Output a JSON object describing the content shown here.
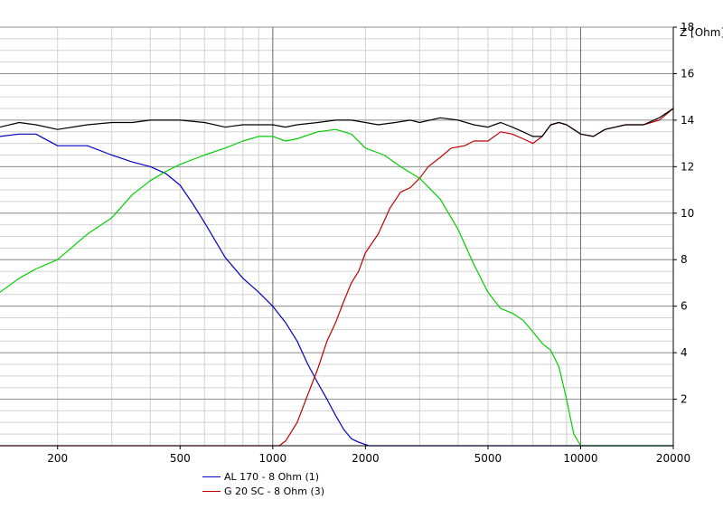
{
  "chart_data": {
    "type": "line",
    "title": "",
    "xlabel": "",
    "ylabel": "Z [Ohm]",
    "x_scale": "log",
    "xlim": [
      130,
      20000
    ],
    "ylim": [
      0,
      18
    ],
    "grid": true,
    "legend_position": "bottom-left",
    "x_ticks": [
      200,
      500,
      1000,
      2000,
      5000,
      10000,
      20000
    ],
    "x_tick_labels": [
      "200",
      "500",
      "1000",
      "2000",
      "5000",
      "10000",
      "20000"
    ],
    "y_ticks": [
      2,
      4,
      6,
      8,
      10,
      12,
      14,
      16,
      18
    ],
    "y_tick_labels": [
      "2",
      "4",
      "6",
      "8",
      "10",
      "12",
      "14",
      "16",
      "18"
    ],
    "series": [
      {
        "name": "AL 170 - 8 Ohm (1)",
        "color": "#0000c0",
        "x": [
          130,
          150,
          170,
          200,
          250,
          300,
          350,
          400,
          450,
          500,
          550,
          600,
          700,
          800,
          900,
          1000,
          1100,
          1200,
          1300,
          1400,
          1500,
          1600,
          1700,
          1800,
          1900,
          2000,
          2050,
          2100,
          20000
        ],
        "y": [
          13.3,
          13.4,
          13.4,
          12.9,
          12.9,
          12.5,
          12.2,
          12.0,
          11.7,
          11.2,
          10.4,
          9.6,
          8.1,
          7.2,
          6.6,
          6.0,
          5.3,
          4.5,
          3.5,
          2.7,
          2.0,
          1.3,
          0.7,
          0.3,
          0.15,
          0.05,
          0.0,
          0.0,
          0.0
        ]
      },
      {
        "name": "G 20 SC - 8 Ohm (3)",
        "color": "#c00000",
        "x": [
          130,
          1000,
          1050,
          1100,
          1200,
          1300,
          1400,
          1500,
          1600,
          1700,
          1800,
          1900,
          2000,
          2200,
          2400,
          2600,
          2800,
          3000,
          3200,
          3500,
          3800,
          4200,
          4500,
          5000,
          5500,
          6000,
          6500,
          7000,
          7500,
          8000,
          8500,
          9000,
          10000,
          11000,
          12000,
          14000,
          16000,
          18000,
          20000
        ],
        "y": [
          0.0,
          0.0,
          0.0,
          0.2,
          1.0,
          2.2,
          3.3,
          4.5,
          5.3,
          6.2,
          7.0,
          7.5,
          8.3,
          9.1,
          10.2,
          10.9,
          11.1,
          11.5,
          12.0,
          12.4,
          12.8,
          12.9,
          13.1,
          13.1,
          13.5,
          13.4,
          13.2,
          13.0,
          13.3,
          13.8,
          13.9,
          13.8,
          13.4,
          13.3,
          13.6,
          13.8,
          13.8,
          14.0,
          14.5
        ]
      },
      {
        "color": "#00d000",
        "x": [
          130,
          150,
          170,
          200,
          250,
          300,
          350,
          400,
          450,
          500,
          600,
          700,
          800,
          900,
          1000,
          1100,
          1200,
          1400,
          1600,
          1800,
          2000,
          2300,
          2600,
          3000,
          3500,
          4000,
          4500,
          5000,
          5500,
          6000,
          6500,
          7000,
          7500,
          8000,
          8500,
          9000,
          9500,
          10000,
          20000
        ],
        "y": [
          6.6,
          7.2,
          7.6,
          8.0,
          9.1,
          9.8,
          10.8,
          11.4,
          11.8,
          12.1,
          12.5,
          12.8,
          13.1,
          13.3,
          13.3,
          13.1,
          13.2,
          13.5,
          13.6,
          13.4,
          12.8,
          12.5,
          12.0,
          11.5,
          10.6,
          9.3,
          7.8,
          6.6,
          5.9,
          5.7,
          5.4,
          4.9,
          4.4,
          4.1,
          3.4,
          2.0,
          0.5,
          0.0,
          0.0
        ]
      },
      {
        "color": "#000000",
        "x": [
          130,
          150,
          170,
          200,
          250,
          300,
          350,
          400,
          500,
          600,
          700,
          800,
          900,
          1000,
          1100,
          1200,
          1400,
          1600,
          1800,
          2000,
          2200,
          2500,
          2800,
          3000,
          3500,
          4000,
          4500,
          5000,
          5500,
          6000,
          6500,
          7000,
          7500,
          8000,
          8500,
          9000,
          10000,
          11000,
          12000,
          14000,
          16000,
          18000,
          20000
        ],
        "y": [
          13.7,
          13.9,
          13.8,
          13.6,
          13.8,
          13.9,
          13.9,
          14.0,
          14.0,
          13.9,
          13.7,
          13.8,
          13.8,
          13.8,
          13.7,
          13.8,
          13.9,
          14.0,
          14.0,
          13.9,
          13.8,
          13.9,
          14.0,
          13.9,
          14.1,
          14.0,
          13.8,
          13.7,
          13.9,
          13.7,
          13.5,
          13.3,
          13.3,
          13.8,
          13.9,
          13.8,
          13.4,
          13.3,
          13.6,
          13.8,
          13.8,
          14.1,
          14.5
        ]
      }
    ]
  }
}
